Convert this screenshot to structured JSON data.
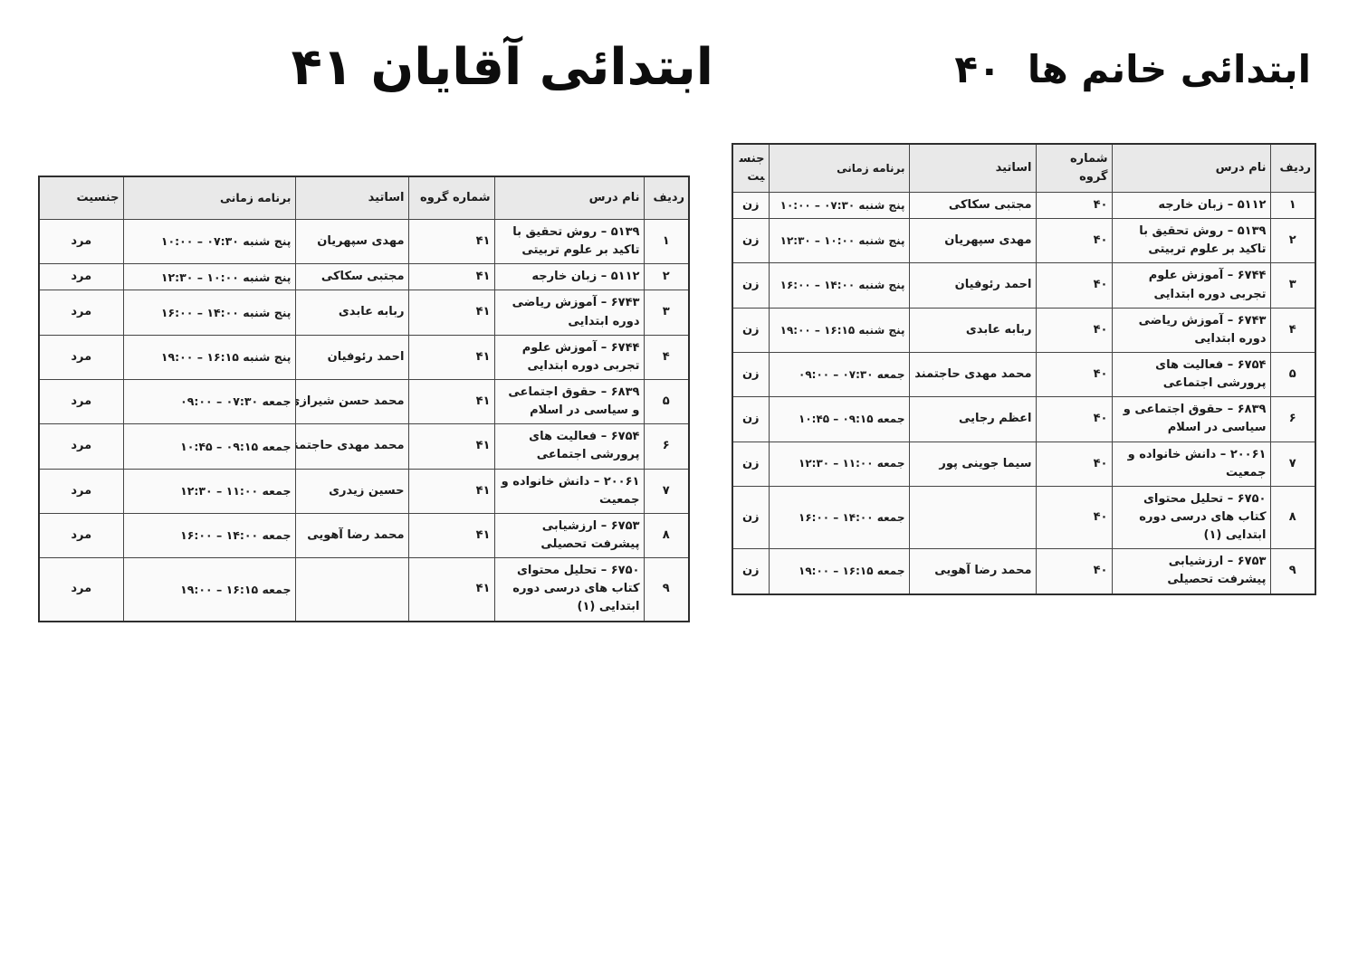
{
  "colors": {
    "page_background": "#ffffff",
    "header_background": "#e9e9e9",
    "cell_background": "#fafafa",
    "border": "#454545",
    "text": "#1b1b1b"
  },
  "tables": [
    {
      "id": "women-40",
      "title": "ابتدائی خانم ها  ۴۰",
      "headers": [
        "ردیف",
        "نام درس",
        "شماره گروه",
        "اساتید",
        "برنامه زمانی",
        "جنسیت"
      ],
      "rows": [
        {
          "row_no": "۱",
          "course": "۵۱۱۲ – زبان خارجه",
          "group": "۴۰",
          "instructor": "مجتبی سکاکی",
          "schedule": "پنج شنبه ۰۷:۳۰ – ۱۰:۰۰",
          "gender": "زن"
        },
        {
          "row_no": "۲",
          "course": "۵۱۳۹ – روش تحقیق با تاکید بر علوم تربیتی",
          "group": "۴۰",
          "instructor": "مهدی سپهریان",
          "schedule": "پنج شنبه ۱۰:۰۰ – ۱۲:۳۰",
          "gender": "زن"
        },
        {
          "row_no": "۳",
          "course": "۶۷۴۴ – آموزش علوم تجربی دوره ابتدایی",
          "group": "۴۰",
          "instructor": "احمد رئوفیان",
          "schedule": "پنج شنبه ۱۴:۰۰ – ۱۶:۰۰",
          "gender": "زن"
        },
        {
          "row_no": "۴",
          "course": "۶۷۴۳ – آموزش ریاضی دوره ابتدایی",
          "group": "۴۰",
          "instructor": "ربابه عابدی",
          "schedule": "پنج شنبه ۱۶:۱۵ – ۱۹:۰۰",
          "gender": "زن"
        },
        {
          "row_no": "۵",
          "course": "۶۷۵۴ – فعالیت های پرورشی اجتماعی",
          "group": "۴۰",
          "instructor": "محمد مهدی حاجتمند",
          "schedule": "جمعه ۰۷:۳۰ – ۰۹:۰۰",
          "gender": "زن"
        },
        {
          "row_no": "۶",
          "course": "۶۸۳۹ – حقوق اجتماعی و سیاسی در اسلام",
          "group": "۴۰",
          "instructor": "اعظم رجایی",
          "schedule": "جمعه ۰۹:۱۵ – ۱۰:۴۵",
          "gender": "زن"
        },
        {
          "row_no": "۷",
          "course": "۲۰۰۶۱ – دانش خانواده و جمعیت",
          "group": "۴۰",
          "instructor": "سیما جوینی پور",
          "schedule": "جمعه ۱۱:۰۰ – ۱۲:۳۰",
          "gender": "زن"
        },
        {
          "row_no": "۸",
          "course": "۶۷۵۰ – تحلیل محتوای کتاب های درسی دوره ابتدایی (۱)",
          "group": "۴۰",
          "instructor": "",
          "schedule": "جمعه ۱۴:۰۰ – ۱۶:۰۰",
          "gender": "زن"
        },
        {
          "row_no": "۹",
          "course": "۶۷۵۳ – ارزشیابی پیشرفت تحصیلی",
          "group": "۴۰",
          "instructor": "محمد رضا آهویی",
          "schedule": "جمعه ۱۶:۱۵ – ۱۹:۰۰",
          "gender": "زن"
        }
      ]
    },
    {
      "id": "men-41",
      "title": "ابتدائی آقایان ۴۱",
      "headers": [
        "ردیف",
        "نام درس",
        "شماره گروه",
        "اساتید",
        "برنامه زمانی",
        "جنسیت"
      ],
      "rows": [
        {
          "row_no": "۱",
          "course": "۵۱۳۹ – روش تحقیق با تاکید بر علوم تربیتی",
          "group": "۴۱",
          "instructor": "مهدی سپهریان",
          "schedule": "پنج شنبه ۰۷:۳۰ – ۱۰:۰۰",
          "gender": "مرد"
        },
        {
          "row_no": "۲",
          "course": "۵۱۱۲ – زبان خارجه",
          "group": "۴۱",
          "instructor": "مجتبی سکاکی",
          "schedule": "پنج شنبه ۱۰:۰۰ – ۱۲:۳۰",
          "gender": "مرد"
        },
        {
          "row_no": "۳",
          "course": "۶۷۴۳ – آموزش ریاضی دوره ابتدایی",
          "group": "۴۱",
          "instructor": "ربابه عابدی",
          "schedule": "پنج شنبه ۱۴:۰۰ – ۱۶:۰۰",
          "gender": "مرد"
        },
        {
          "row_no": "۴",
          "course": "۶۷۴۴ – آموزش علوم تجربی دوره ابتدایی",
          "group": "۴۱",
          "instructor": "احمد رئوفیان",
          "schedule": "پنج شنبه ۱۶:۱۵ – ۱۹:۰۰",
          "gender": "مرد"
        },
        {
          "row_no": "۵",
          "course": "۶۸۳۹ – حقوق اجتماعی و سیاسی در اسلام",
          "group": "۴۱",
          "instructor": "محمد حسن شیرازی",
          "schedule": "جمعه ۰۷:۳۰ – ۰۹:۰۰",
          "gender": "مرد"
        },
        {
          "row_no": "۶",
          "course": "۶۷۵۴ – فعالیت های پرورشی اجتماعی",
          "group": "۴۱",
          "instructor": "محمد مهدی حاجتمند",
          "schedule": "جمعه ۰۹:۱۵ – ۱۰:۴۵",
          "gender": "مرد"
        },
        {
          "row_no": "۷",
          "course": "۲۰۰۶۱ – دانش خانواده و جمعیت",
          "group": "۴۱",
          "instructor": "حسین زیدری",
          "schedule": "جمعه ۱۱:۰۰ – ۱۲:۳۰",
          "gender": "مرد"
        },
        {
          "row_no": "۸",
          "course": "۶۷۵۳ – ارزشیابی پیشرفت تحصیلی",
          "group": "۴۱",
          "instructor": "محمد رضا آهویی",
          "schedule": "جمعه ۱۴:۰۰ – ۱۶:۰۰",
          "gender": "مرد"
        },
        {
          "row_no": "۹",
          "course": "۶۷۵۰ – تحلیل محتوای کتاب های درسی دوره ابتدایی (۱)",
          "group": "۴۱",
          "instructor": "",
          "schedule": "جمعه ۱۶:۱۵ – ۱۹:۰۰",
          "gender": "مرد"
        }
      ]
    }
  ]
}
